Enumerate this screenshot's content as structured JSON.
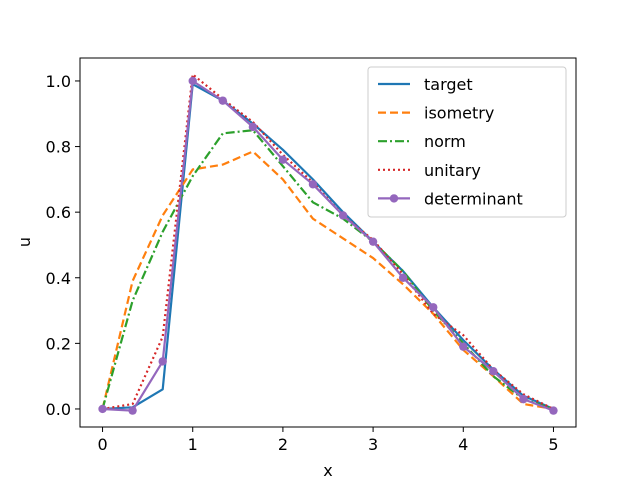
{
  "chart_data": {
    "type": "line",
    "xlabel": "x",
    "ylabel": "u",
    "xlim": [
      -0.25,
      5.25
    ],
    "ylim": [
      -0.055,
      1.07
    ],
    "xticks": [
      "0",
      "1",
      "2",
      "3",
      "4",
      "5"
    ],
    "yticks": [
      "0.0",
      "0.2",
      "0.4",
      "0.6",
      "0.8",
      "1.0"
    ],
    "grid": false,
    "legend_position": "upper right",
    "series": [
      {
        "name": "target",
        "color": "#1f77b4",
        "style": "solid",
        "x": [
          0,
          0.333,
          0.667,
          1.0,
          1.333,
          1.667,
          2.0,
          2.333,
          2.667,
          3.0,
          3.333,
          3.667,
          4.0,
          4.333,
          4.667,
          5.0
        ],
        "y": [
          0.0,
          0.005,
          0.06,
          0.99,
          0.94,
          0.87,
          0.79,
          0.7,
          0.6,
          0.51,
          0.42,
          0.31,
          0.21,
          0.12,
          0.04,
          0.0
        ]
      },
      {
        "name": "isometry",
        "color": "#ff7f0e",
        "style": "dashed",
        "x": [
          0,
          0.333,
          0.667,
          1.0,
          1.333,
          1.667,
          2.0,
          2.333,
          2.667,
          3.0,
          3.333,
          3.667,
          4.0,
          4.333,
          4.667,
          5.0
        ],
        "y": [
          0.0,
          0.39,
          0.59,
          0.73,
          0.745,
          0.785,
          0.7,
          0.58,
          0.52,
          0.46,
          0.38,
          0.29,
          0.18,
          0.1,
          0.015,
          0.0
        ]
      },
      {
        "name": "norm",
        "color": "#2ca02c",
        "style": "dashdot",
        "x": [
          0,
          0.333,
          0.667,
          1.0,
          1.333,
          1.667,
          2.0,
          2.333,
          2.667,
          3.0,
          3.333,
          3.667,
          4.0,
          4.333,
          4.667,
          5.0
        ],
        "y": [
          0.0,
          0.33,
          0.54,
          0.71,
          0.84,
          0.85,
          0.74,
          0.63,
          0.58,
          0.51,
          0.42,
          0.3,
          0.2,
          0.1,
          0.03,
          0.0
        ]
      },
      {
        "name": "unitary",
        "color": "#d62728",
        "style": "dotted",
        "x": [
          0,
          0.333,
          0.667,
          1.0,
          1.333,
          1.667,
          2.0,
          2.333,
          2.667,
          3.0,
          3.333,
          3.667,
          4.0,
          4.333,
          4.667,
          5.0
        ],
        "y": [
          0.0,
          0.015,
          0.22,
          1.02,
          0.945,
          0.875,
          0.775,
          0.69,
          0.59,
          0.515,
          0.41,
          0.29,
          0.225,
          0.12,
          0.045,
          0.0
        ]
      },
      {
        "name": "determinant",
        "color": "#9467bd",
        "style": "solid",
        "marker": true,
        "x": [
          0,
          0.333,
          0.667,
          1.0,
          1.333,
          1.667,
          2.0,
          2.333,
          2.667,
          3.0,
          3.333,
          3.667,
          4.0,
          4.333,
          4.667,
          5.0
        ],
        "y": [
          0.0,
          -0.005,
          0.145,
          1.0,
          0.94,
          0.86,
          0.76,
          0.685,
          0.59,
          0.51,
          0.4,
          0.31,
          0.19,
          0.115,
          0.03,
          -0.005
        ]
      }
    ]
  }
}
